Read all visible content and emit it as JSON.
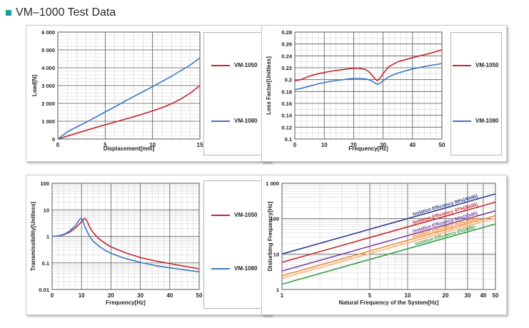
{
  "page": {
    "heading": "VM–1000 Test Data",
    "accent_color": "#1a9e9b"
  },
  "colors": {
    "red": "#c0282d",
    "blue": "#3b78c2"
  },
  "chart_data": [
    {
      "type": "line",
      "xlabel": "Displacement[mm]",
      "ylabel": "Load[N]",
      "xlim": [
        0,
        15
      ],
      "ylim": [
        0,
        6000
      ],
      "xscale": "linear",
      "yscale": "linear",
      "xticks": [
        0,
        5,
        10,
        15
      ],
      "xtick_labels": [
        "0",
        "5",
        "10",
        "15"
      ],
      "yticks": [
        0,
        1000,
        2000,
        3000,
        4000,
        5000,
        6000
      ],
      "ytick_labels": [
        "0",
        "1 000",
        "2 000",
        "3 000",
        "4 000",
        "5 000",
        "6 000"
      ],
      "xminor": 1,
      "yminor": 200,
      "grid": true,
      "legend_position": "right",
      "series": [
        {
          "name": "VM-1050",
          "color": "#c0282d",
          "x": [
            0,
            1,
            2,
            3,
            4,
            5,
            6,
            7,
            8,
            9,
            10,
            11,
            12,
            13,
            14,
            15
          ],
          "y": [
            0,
            170,
            330,
            490,
            650,
            800,
            950,
            1100,
            1250,
            1410,
            1580,
            1760,
            1980,
            2250,
            2580,
            3000
          ]
        },
        {
          "name": "VM-1080",
          "color": "#3b78c2",
          "x": [
            0,
            1,
            2,
            3,
            4,
            5,
            6,
            7,
            8,
            9,
            10,
            11,
            12,
            13,
            14,
            15
          ],
          "y": [
            0,
            400,
            680,
            950,
            1230,
            1520,
            1800,
            2100,
            2380,
            2660,
            2940,
            3230,
            3520,
            3840,
            4160,
            4550
          ]
        }
      ]
    },
    {
      "type": "line",
      "xlabel": "Frequency[Hz]",
      "ylabel": "Loss Factor[Unitless]",
      "xlim": [
        0,
        50
      ],
      "ylim": [
        0.1,
        0.28
      ],
      "xscale": "linear",
      "yscale": "linear",
      "xticks": [
        0,
        10,
        20,
        30,
        40,
        50
      ],
      "xtick_labels": [
        "0",
        "10",
        "20",
        "30",
        "40",
        "50"
      ],
      "yticks": [
        0.1,
        0.12,
        0.14,
        0.16,
        0.18,
        0.2,
        0.22,
        0.24,
        0.26,
        0.28
      ],
      "ytick_labels": [
        "0.1",
        "0.12",
        "0.14",
        "0.16",
        "0.18",
        "0.2",
        "0.22",
        "0.24",
        "0.26",
        "0.28"
      ],
      "xminor": 2,
      "yminor": 0.01,
      "grid": true,
      "legend_position": "right",
      "series": [
        {
          "name": "VM-1050",
          "color": "#c0282d",
          "x": [
            0,
            2,
            5,
            8,
            10,
            12,
            15,
            18,
            20,
            22,
            24,
            25,
            26,
            27,
            28,
            29,
            30,
            32,
            35,
            40,
            45,
            50
          ],
          "y": [
            0.198,
            0.2,
            0.206,
            0.21,
            0.212,
            0.214,
            0.216,
            0.218,
            0.219,
            0.219,
            0.217,
            0.214,
            0.209,
            0.203,
            0.198,
            0.203,
            0.21,
            0.222,
            0.23,
            0.237,
            0.243,
            0.25
          ]
        },
        {
          "name": "VM-1080",
          "color": "#3b78c2",
          "x": [
            0,
            2,
            5,
            8,
            10,
            12,
            15,
            18,
            20,
            22,
            24,
            25,
            26,
            27,
            28,
            29,
            30,
            32,
            35,
            40,
            45,
            50
          ],
          "y": [
            0.183,
            0.185,
            0.189,
            0.193,
            0.195,
            0.197,
            0.199,
            0.201,
            0.202,
            0.202,
            0.201,
            0.2,
            0.198,
            0.195,
            0.192,
            0.194,
            0.198,
            0.205,
            0.211,
            0.218,
            0.223,
            0.227
          ]
        }
      ]
    },
    {
      "type": "line",
      "xlabel": "Frequency[Hz]",
      "ylabel": "Transmissibility[Unitless]",
      "xlim": [
        0,
        50
      ],
      "ylim": [
        0.01,
        100
      ],
      "xscale": "linear",
      "yscale": "log",
      "xticks": [
        0,
        10,
        20,
        30,
        40,
        50
      ],
      "xtick_labels": [
        "0",
        "10",
        "20",
        "30",
        "40",
        "50"
      ],
      "yticks": [
        0.01,
        0.1,
        1,
        10,
        100
      ],
      "ytick_labels": [
        "0.01",
        "0.1",
        "1",
        "10",
        "100"
      ],
      "xminor": 2,
      "grid": true,
      "legend_position": "right",
      "series": [
        {
          "name": "VM-1050",
          "color": "#c0282d",
          "x": [
            0,
            2,
            4,
            6,
            8,
            9,
            10,
            10.5,
            11,
            11.5,
            12,
            13,
            14,
            16,
            18,
            20,
            25,
            30,
            35,
            40,
            45,
            50
          ],
          "y": [
            1,
            1.03,
            1.15,
            1.45,
            2.1,
            2.7,
            3.6,
            4.2,
            4.7,
            4.4,
            3.5,
            2.0,
            1.35,
            0.8,
            0.55,
            0.4,
            0.24,
            0.16,
            0.12,
            0.095,
            0.075,
            0.06
          ]
        },
        {
          "name": "VM-1080",
          "color": "#3b78c2",
          "x": [
            0,
            2,
            4,
            6,
            8,
            9,
            9.5,
            10,
            10.5,
            11,
            12,
            13,
            14,
            16,
            18,
            20,
            25,
            30,
            35,
            40,
            45,
            50
          ],
          "y": [
            1,
            1.04,
            1.2,
            1.6,
            2.6,
            3.8,
            4.6,
            4.8,
            3.8,
            2.5,
            1.45,
            0.9,
            0.65,
            0.42,
            0.3,
            0.23,
            0.145,
            0.105,
            0.08,
            0.065,
            0.055,
            0.046
          ]
        }
      ]
    },
    {
      "type": "line",
      "xlabel": "Natural Frequency of the System[Hz]",
      "ylabel": "Disturbing Frequency[Hz]",
      "xlim": [
        1,
        50
      ],
      "ylim": [
        1,
        1000
      ],
      "xscale": "log",
      "yscale": "log",
      "xticks": [
        1,
        5,
        10,
        20,
        30,
        40,
        50
      ],
      "xtick_labels": [
        "1",
        "5",
        "10",
        "20",
        "30",
        "40",
        "50"
      ],
      "yticks": [
        1,
        10,
        100,
        1000
      ],
      "ytick_labels": [
        "1",
        "10",
        "100",
        "1 000"
      ],
      "grid": true,
      "series": [
        {
          "name": "Isolation Efficiency 99%[40dB]",
          "color": "#2e3d8f",
          "x": [
            1,
            50
          ],
          "y": [
            10.05,
            502
          ]
        },
        {
          "name": "Isolation Efficiency 97%[30dB]",
          "color": "#c0282d",
          "x": [
            1,
            50
          ],
          "y": [
            5.86,
            293
          ]
        },
        {
          "name": "Isolation Efficiency 90%[20dB]",
          "color": "#7a3fa0",
          "x": [
            1,
            50
          ],
          "y": [
            3.32,
            166
          ]
        },
        {
          "name": "Isolation Efficiency 80%[14dB]",
          "color": "#f08a3c",
          "x": [
            1,
            50
          ],
          "y": [
            2.45,
            122
          ]
        },
        {
          "name": "Isolation Efficiency 70%[10dB]",
          "color": "#ffb070",
          "x": [
            1,
            50
          ],
          "y": [
            2.08,
            104
          ]
        },
        {
          "name": "Isolation Efficiency 0%[0dB]",
          "color": "#3a9c4a",
          "x": [
            1,
            50
          ],
          "y": [
            1.41,
            70.7
          ]
        }
      ]
    }
  ]
}
